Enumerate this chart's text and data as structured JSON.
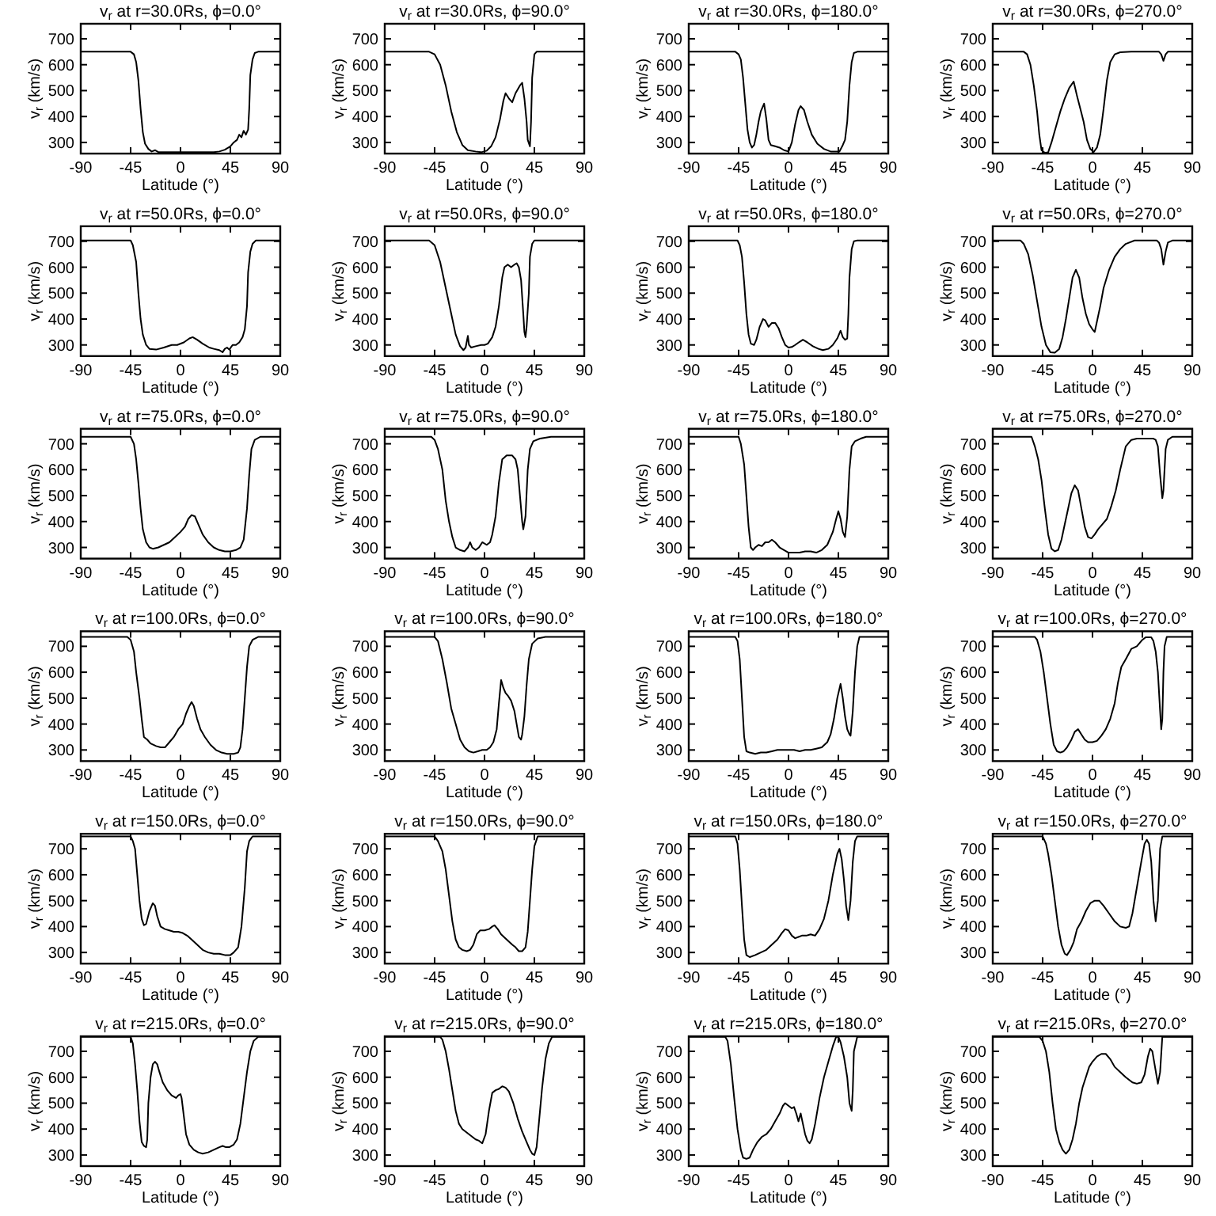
{
  "chart_data": [
    {
      "type": "line",
      "title": "v$_{r}$ at r=30.0Rs, ϕ=0.0°",
      "xlabel": "Latitude (°)",
      "ylabel": "v$_{r}$ (km/s)",
      "color": "#000000",
      "xlim": [
        -90,
        90
      ],
      "ylim": [
        257,
        758
      ],
      "xticks": [
        -90,
        -45,
        0,
        45,
        90
      ],
      "yticks": [
        300,
        400,
        500,
        600,
        700
      ],
      "x": [
        -90,
        -45,
        -42,
        -40,
        -38,
        -36,
        -34,
        -32,
        -29,
        -26,
        -23,
        -20,
        -15,
        0,
        30,
        35,
        40,
        45,
        48,
        51,
        53,
        55,
        57,
        59,
        61,
        62,
        63,
        65,
        67,
        70,
        90
      ],
      "values": [
        650,
        650,
        640,
        610,
        540,
        430,
        340,
        295,
        275,
        265,
        270,
        263,
        262,
        262,
        262,
        265,
        272,
        285,
        300,
        310,
        330,
        320,
        345,
        330,
        350,
        430,
        560,
        620,
        645,
        650,
        650
      ]
    },
    {
      "type": "line",
      "title": "v$_{r}$ at r=30.0Rs, ϕ=90.0°",
      "xlabel": "Latitude (°)",
      "ylabel": "v$_{r}$ (km/s)",
      "color": "#000000",
      "xlim": [
        -90,
        90
      ],
      "ylim": [
        257,
        758
      ],
      "xticks": [
        -90,
        -45,
        0,
        45,
        90
      ],
      "yticks": [
        300,
        400,
        500,
        600,
        700
      ],
      "x": [
        -90,
        -50,
        -45,
        -40,
        -35,
        -30,
        -25,
        -20,
        -15,
        -8,
        -3,
        2,
        6,
        10,
        14,
        17,
        19,
        22,
        25,
        28,
        32,
        34,
        36,
        38,
        39,
        41,
        42,
        43,
        45,
        47,
        90
      ],
      "values": [
        650,
        650,
        640,
        600,
        520,
        420,
        340,
        290,
        270,
        265,
        262,
        268,
        285,
        320,
        390,
        460,
        490,
        470,
        455,
        490,
        520,
        530,
        470,
        380,
        310,
        285,
        380,
        550,
        640,
        650,
        650
      ]
    },
    {
      "type": "line",
      "title": "v$_{r}$ at r=30.0Rs, ϕ=180.0°",
      "xlabel": "Latitude (°)",
      "ylabel": "v$_{r}$ (km/s)",
      "color": "#000000",
      "xlim": [
        -90,
        90
      ],
      "ylim": [
        257,
        758
      ],
      "xticks": [
        -90,
        -45,
        0,
        45,
        90
      ],
      "yticks": [
        300,
        400,
        500,
        600,
        700
      ],
      "x": [
        -90,
        -48,
        -45,
        -43,
        -41,
        -39,
        -37,
        -35,
        -33,
        -31,
        -29,
        -27,
        -25,
        -22,
        -20,
        -18,
        -16,
        -12,
        -8,
        -4,
        0,
        3,
        6,
        9,
        11,
        14,
        17,
        21,
        26,
        32,
        38,
        46,
        49,
        51,
        53,
        55,
        57,
        59,
        62,
        90
      ],
      "values": [
        650,
        650,
        640,
        620,
        550,
        450,
        350,
        300,
        280,
        290,
        330,
        380,
        420,
        450,
        390,
        310,
        290,
        285,
        280,
        270,
        265,
        300,
        370,
        425,
        440,
        425,
        380,
        330,
        295,
        275,
        265,
        265,
        290,
        310,
        380,
        520,
        610,
        645,
        650,
        650
      ]
    },
    {
      "type": "line",
      "title": "v$_{r}$ at r=30.0Rs, ϕ=270.0°",
      "xlabel": "Latitude (°)",
      "ylabel": "v$_{r}$ (km/s)",
      "color": "#000000",
      "xlim": [
        -90,
        90
      ],
      "ylim": [
        257,
        758
      ],
      "xticks": [
        -90,
        -45,
        0,
        45,
        90
      ],
      "yticks": [
        300,
        400,
        500,
        600,
        700
      ],
      "x": [
        -90,
        -62,
        -59,
        -56,
        -53,
        -50,
        -48,
        -46,
        -43,
        -40,
        -37,
        -33,
        -29,
        -25,
        -21,
        -17,
        -14,
        -11,
        -8,
        -5,
        -2,
        1,
        4,
        7,
        10,
        13,
        16,
        20,
        25,
        35,
        60,
        62,
        64,
        66,
        68,
        90
      ],
      "values": [
        650,
        650,
        640,
        600,
        520,
        420,
        330,
        270,
        260,
        262,
        300,
        360,
        420,
        470,
        510,
        535,
        480,
        430,
        380,
        310,
        275,
        263,
        280,
        330,
        430,
        540,
        610,
        640,
        648,
        650,
        650,
        640,
        615,
        640,
        650,
        650
      ]
    },
    {
      "type": "line",
      "title": "v$_{r}$ at r=50.0Rs, ϕ=0.0°",
      "xlabel": "Latitude (°)",
      "ylabel": "v$_{r}$ (km/s)",
      "color": "#000000",
      "xlim": [
        -90,
        90
      ],
      "ylim": [
        257,
        758
      ],
      "xticks": [
        -90,
        -45,
        0,
        45,
        90
      ],
      "yticks": [
        300,
        400,
        500,
        600,
        700
      ],
      "x": [
        -90,
        -45,
        -43,
        -40,
        -38,
        -36,
        -34,
        -31,
        -28,
        -22,
        -15,
        -8,
        -3,
        3,
        8,
        11,
        15,
        20,
        26,
        30,
        35,
        38,
        40,
        42,
        44,
        47,
        50,
        53,
        56,
        58,
        60,
        61,
        63,
        65,
        68,
        90
      ],
      "values": [
        703,
        703,
        685,
        620,
        500,
        400,
        340,
        300,
        285,
        282,
        290,
        300,
        300,
        310,
        325,
        330,
        320,
        305,
        290,
        285,
        280,
        272,
        285,
        290,
        282,
        300,
        300,
        310,
        330,
        360,
        450,
        580,
        660,
        690,
        703,
        703
      ]
    },
    {
      "type": "line",
      "title": "v$_{r}$ at r=50.0Rs, ϕ=90.0°",
      "xlabel": "Latitude (°)",
      "ylabel": "v$_{r}$ (km/s)",
      "color": "#000000",
      "xlim": [
        -90,
        90
      ],
      "ylim": [
        257,
        758
      ],
      "xticks": [
        -90,
        -45,
        0,
        45,
        90
      ],
      "yticks": [
        300,
        400,
        500,
        600,
        700
      ],
      "x": [
        -90,
        -50,
        -45,
        -40,
        -35,
        -30,
        -26,
        -22,
        -19,
        -17,
        -15,
        -14,
        -12,
        -8,
        -3,
        0,
        3,
        7,
        10,
        13,
        16,
        18,
        21,
        24,
        27,
        29,
        31,
        33,
        35,
        36,
        37,
        38,
        40,
        41,
        43,
        45,
        90
      ],
      "values": [
        703,
        703,
        685,
        620,
        520,
        420,
        340,
        295,
        280,
        290,
        335,
        300,
        290,
        295,
        300,
        300,
        305,
        330,
        370,
        450,
        560,
        600,
        610,
        600,
        610,
        615,
        600,
        550,
        420,
        350,
        330,
        370,
        500,
        640,
        690,
        703,
        703
      ]
    },
    {
      "type": "line",
      "title": "v$_{r}$ at r=50.0Rs, ϕ=180.0°",
      "xlabel": "Latitude (°)",
      "ylabel": "v$_{r}$ (km/s)",
      "color": "#000000",
      "xlim": [
        -90,
        90
      ],
      "ylim": [
        257,
        758
      ],
      "xticks": [
        -90,
        -45,
        0,
        45,
        90
      ],
      "yticks": [
        300,
        400,
        500,
        600,
        700
      ],
      "x": [
        -90,
        -46,
        -44,
        -42,
        -40,
        -38,
        -36,
        -34,
        -31,
        -29,
        -26,
        -23,
        -21,
        -18,
        -15,
        -12,
        -9,
        -6,
        -3,
        0,
        3,
        6,
        10,
        13,
        17,
        22,
        27,
        31,
        36,
        40,
        44,
        47,
        49,
        51,
        53,
        54,
        55,
        57,
        59,
        62,
        90
      ],
      "values": [
        703,
        703,
        685,
        640,
        540,
        420,
        340,
        305,
        300,
        320,
        370,
        400,
        395,
        370,
        385,
        385,
        365,
        330,
        300,
        290,
        292,
        300,
        312,
        320,
        310,
        295,
        285,
        280,
        285,
        300,
        325,
        355,
        330,
        320,
        325,
        420,
        560,
        670,
        700,
        703,
        703
      ]
    },
    {
      "type": "line",
      "title": "v$_{r}$ at r=50.0Rs, ϕ=270.0°",
      "xlabel": "Latitude (°)",
      "ylabel": "v$_{r}$ (km/s)",
      "color": "#000000",
      "xlim": [
        -90,
        90
      ],
      "ylim": [
        257,
        758
      ],
      "xticks": [
        -90,
        -45,
        0,
        45,
        90
      ],
      "yticks": [
        300,
        400,
        500,
        600,
        700
      ],
      "x": [
        -90,
        -65,
        -62,
        -58,
        -54,
        -50,
        -46,
        -42,
        -38,
        -34,
        -30,
        -27,
        -24,
        -21,
        -18,
        -15,
        -12,
        -9,
        -6,
        -3,
        0,
        2,
        4,
        7,
        10,
        15,
        20,
        25,
        30,
        38,
        58,
        60,
        62,
        64,
        66,
        68,
        72,
        90
      ],
      "values": [
        703,
        703,
        690,
        650,
        570,
        470,
        370,
        300,
        272,
        270,
        285,
        330,
        400,
        480,
        560,
        590,
        560,
        480,
        420,
        380,
        360,
        350,
        390,
        450,
        520,
        590,
        640,
        670,
        690,
        703,
        703,
        695,
        670,
        610,
        660,
        695,
        703,
        703
      ]
    },
    {
      "type": "line",
      "title": "v$_{r}$ at r=75.0Rs, ϕ=0.0°",
      "xlabel": "Latitude (°)",
      "ylabel": "v$_{r}$ (km/s)",
      "color": "#000000",
      "xlim": [
        -90,
        90
      ],
      "ylim": [
        257,
        758
      ],
      "xticks": [
        -90,
        -45,
        0,
        45,
        90
      ],
      "yticks": [
        300,
        400,
        500,
        600,
        700
      ],
      "x": [
        -90,
        -45,
        -42,
        -40,
        -38,
        -36,
        -34,
        -31,
        -28,
        -25,
        -20,
        -15,
        -10,
        -5,
        0,
        4,
        7,
        10,
        13,
        16,
        20,
        25,
        30,
        35,
        40,
        45,
        50,
        54,
        57,
        60,
        62,
        64,
        67,
        72,
        90
      ],
      "values": [
        727,
        727,
        700,
        640,
        550,
        450,
        370,
        320,
        300,
        295,
        300,
        310,
        320,
        340,
        360,
        380,
        410,
        425,
        420,
        390,
        350,
        320,
        300,
        290,
        285,
        285,
        290,
        300,
        330,
        450,
        580,
        680,
        715,
        727,
        727
      ]
    },
    {
      "type": "line",
      "title": "v$_{r}$ at r=75.0Rs, ϕ=90.0°",
      "xlabel": "Latitude (°)",
      "ylabel": "v$_{r}$ (km/s)",
      "color": "#000000",
      "xlim": [
        -90,
        90
      ],
      "ylim": [
        257,
        758
      ],
      "xticks": [
        -90,
        -45,
        0,
        45,
        90
      ],
      "yticks": [
        300,
        400,
        500,
        600,
        700
      ],
      "x": [
        -90,
        -48,
        -45,
        -42,
        -38,
        -35,
        -32,
        -29,
        -26,
        -22,
        -18,
        -15,
        -13,
        -11,
        -8,
        -5,
        -2,
        2,
        5,
        7,
        10,
        13,
        16,
        20,
        25,
        28,
        30,
        32,
        34,
        35,
        37,
        39,
        41,
        44,
        50,
        60,
        90
      ],
      "values": [
        727,
        727,
        715,
        680,
        600,
        480,
        400,
        340,
        300,
        290,
        285,
        300,
        320,
        300,
        290,
        300,
        320,
        310,
        320,
        350,
        420,
        550,
        640,
        655,
        655,
        640,
        600,
        500,
        400,
        370,
        420,
        600,
        680,
        710,
        720,
        727,
        727
      ]
    },
    {
      "type": "line",
      "title": "v$_{r}$ at r=75.0Rs, ϕ=180.0°",
      "xlabel": "Latitude (°)",
      "ylabel": "v$_{r}$ (km/s)",
      "color": "#000000",
      "xlim": [
        -90,
        90
      ],
      "ylim": [
        257,
        758
      ],
      "xticks": [
        -90,
        -45,
        0,
        45,
        90
      ],
      "yticks": [
        300,
        400,
        500,
        600,
        700
      ],
      "x": [
        -90,
        -45,
        -43,
        -40,
        -38,
        -36,
        -34,
        -32,
        -30,
        -27,
        -24,
        -21,
        -18,
        -15,
        -12,
        -8,
        -4,
        0,
        5,
        10,
        15,
        20,
        25,
        30,
        35,
        40,
        43,
        45,
        47,
        49,
        51,
        53,
        55,
        57,
        60,
        65,
        70,
        90
      ],
      "values": [
        727,
        727,
        700,
        620,
        500,
        380,
        300,
        290,
        300,
        310,
        305,
        320,
        320,
        330,
        320,
        300,
        290,
        280,
        280,
        280,
        285,
        285,
        280,
        290,
        310,
        360,
        410,
        440,
        410,
        360,
        340,
        420,
        600,
        690,
        710,
        720,
        727,
        727
      ]
    },
    {
      "type": "line",
      "title": "v$_{r}$ at r=75.0Rs, ϕ=270.0°",
      "xlabel": "Latitude (°)",
      "ylabel": "v$_{r}$ (km/s)",
      "color": "#000000",
      "xlim": [
        -90,
        90
      ],
      "ylim": [
        257,
        758
      ],
      "xticks": [
        -90,
        -45,
        0,
        45,
        90
      ],
      "yticks": [
        300,
        400,
        500,
        600,
        700
      ],
      "x": [
        -90,
        -55,
        -52,
        -49,
        -46,
        -43,
        -40,
        -37,
        -34,
        -31,
        -28,
        -25,
        -22,
        -19,
        -16,
        -13,
        -10,
        -7,
        -4,
        -1,
        2,
        5,
        9,
        13,
        17,
        21,
        25,
        30,
        35,
        40,
        55,
        57,
        59,
        61,
        63,
        64,
        66,
        68,
        72,
        90
      ],
      "values": [
        727,
        727,
        690,
        640,
        560,
        450,
        350,
        295,
        285,
        290,
        330,
        390,
        450,
        510,
        540,
        520,
        450,
        380,
        340,
        335,
        350,
        370,
        390,
        410,
        460,
        520,
        600,
        690,
        715,
        720,
        720,
        715,
        690,
        580,
        490,
        520,
        680,
        715,
        727,
        727
      ]
    },
    {
      "type": "line",
      "title": "v$_{r}$ at r=100.0Rs, ϕ=0.0°",
      "xlabel": "Latitude (°)",
      "ylabel": "v$_{r}$ (km/s)",
      "color": "#000000",
      "xlim": [
        -90,
        90
      ],
      "ylim": [
        257,
        758
      ],
      "xticks": [
        -90,
        -45,
        0,
        45,
        90
      ],
      "yticks": [
        300,
        400,
        500,
        600,
        700
      ],
      "x": [
        -90,
        -48,
        -45,
        -42,
        -40,
        -37,
        -35,
        -33,
        -30,
        -27,
        -22,
        -18,
        -14,
        -10,
        -6,
        -2,
        2,
        5,
        8,
        10,
        12,
        15,
        18,
        22,
        27,
        32,
        37,
        42,
        48,
        52,
        54,
        56,
        58,
        60,
        62,
        65,
        70,
        90
      ],
      "values": [
        736,
        736,
        725,
        680,
        600,
        500,
        420,
        350,
        340,
        325,
        315,
        310,
        310,
        330,
        350,
        380,
        400,
        440,
        470,
        485,
        470,
        420,
        380,
        350,
        320,
        300,
        290,
        285,
        285,
        290,
        310,
        380,
        500,
        620,
        700,
        725,
        736,
        736
      ]
    },
    {
      "type": "line",
      "title": "v$_{r}$ at r=100.0Rs, ϕ=90.0°",
      "xlabel": "Latitude (°)",
      "ylabel": "v$_{r}$ (km/s)",
      "color": "#000000",
      "xlim": [
        -90,
        90
      ],
      "ylim": [
        257,
        758
      ],
      "xticks": [
        -90,
        -45,
        0,
        45,
        90
      ],
      "yticks": [
        300,
        400,
        500,
        600,
        700
      ],
      "x": [
        -90,
        -45,
        -42,
        -38,
        -34,
        -30,
        -26,
        -22,
        -18,
        -14,
        -10,
        -6,
        -2,
        2,
        5,
        8,
        11,
        13,
        15,
        17,
        19,
        21,
        24,
        27,
        29,
        31,
        33,
        34,
        36,
        38,
        40,
        43,
        48,
        55,
        90
      ],
      "values": [
        736,
        736,
        720,
        650,
        560,
        460,
        400,
        340,
        310,
        295,
        290,
        295,
        300,
        300,
        310,
        330,
        380,
        480,
        570,
        540,
        520,
        510,
        490,
        450,
        400,
        350,
        340,
        360,
        430,
        550,
        650,
        710,
        730,
        736,
        736
      ]
    },
    {
      "type": "line",
      "title": "v$_{r}$ at r=100.0Rs, ϕ=180.0°",
      "xlabel": "Latitude (°)",
      "ylabel": "v$_{r}$ (km/s)",
      "color": "#000000",
      "xlim": [
        -90,
        90
      ],
      "ylim": [
        257,
        758
      ],
      "xticks": [
        -90,
        -45,
        0,
        45,
        90
      ],
      "yticks": [
        300,
        400,
        500,
        600,
        700
      ],
      "x": [
        -90,
        -48,
        -46,
        -44,
        -42,
        -40,
        -38,
        -35,
        -30,
        -25,
        -20,
        -15,
        -10,
        -5,
        0,
        5,
        10,
        15,
        20,
        25,
        30,
        35,
        38,
        41,
        44,
        47,
        49,
        51,
        53,
        55,
        56,
        58,
        60,
        62,
        64,
        90
      ],
      "values": [
        736,
        736,
        720,
        650,
        500,
        350,
        295,
        290,
        285,
        290,
        290,
        295,
        300,
        300,
        300,
        300,
        295,
        300,
        300,
        305,
        310,
        330,
        360,
        420,
        500,
        555,
        500,
        430,
        380,
        360,
        355,
        450,
        600,
        700,
        736,
        736
      ]
    },
    {
      "type": "line",
      "title": "v$_{r}$ at r=100.0Rs, ϕ=270.0°",
      "xlabel": "Latitude (°)",
      "ylabel": "v$_{r}$ (km/s)",
      "color": "#000000",
      "xlim": [
        -90,
        90
      ],
      "ylim": [
        257,
        758
      ],
      "xticks": [
        -90,
        -45,
        0,
        45,
        90
      ],
      "yticks": [
        300,
        400,
        500,
        600,
        700
      ],
      "x": [
        -90,
        -52,
        -50,
        -47,
        -44,
        -41,
        -38,
        -35,
        -32,
        -29,
        -26,
        -23,
        -19,
        -16,
        -13,
        -10,
        -7,
        -4,
        0,
        4,
        8,
        12,
        16,
        20,
        23,
        26,
        30,
        35,
        40,
        45,
        48,
        53,
        55,
        57,
        59,
        61,
        62,
        63,
        64,
        65,
        67,
        90
      ],
      "values": [
        736,
        736,
        725,
        680,
        600,
        500,
        400,
        320,
        295,
        290,
        295,
        310,
        340,
        370,
        380,
        360,
        340,
        330,
        330,
        335,
        355,
        380,
        420,
        480,
        560,
        620,
        650,
        690,
        700,
        725,
        735,
        735,
        720,
        680,
        600,
        450,
        380,
        420,
        600,
        700,
        736,
        736
      ]
    },
    {
      "type": "line",
      "title": "v$_{r}$ at r=150.0Rs, ϕ=0.0°",
      "xlabel": "Latitude (°)",
      "ylabel": "v$_{r}$ (km/s)",
      "color": "#000000",
      "xlim": [
        -90,
        90
      ],
      "ylim": [
        257,
        758
      ],
      "xticks": [
        -90,
        -45,
        0,
        45,
        90
      ],
      "yticks": [
        300,
        400,
        500,
        600,
        700
      ],
      "x": [
        -90,
        -45,
        -43,
        -41,
        -39,
        -37,
        -35,
        -33,
        -31,
        -28,
        -25,
        -23,
        -21,
        -18,
        -14,
        -10,
        -6,
        -2,
        2,
        6,
        10,
        15,
        20,
        25,
        30,
        35,
        40,
        45,
        48,
        52,
        55,
        58,
        60,
        62,
        65,
        90
      ],
      "values": [
        748,
        748,
        730,
        700,
        600,
        500,
        430,
        405,
        410,
        460,
        490,
        480,
        440,
        400,
        390,
        385,
        380,
        380,
        375,
        365,
        350,
        330,
        310,
        300,
        295,
        295,
        290,
        290,
        300,
        320,
        400,
        550,
        690,
        730,
        748,
        748
      ]
    },
    {
      "type": "line",
      "title": "v$_{r}$ at r=150.0Rs, ϕ=90.0°",
      "xlabel": "Latitude (°)",
      "ylabel": "v$_{r}$ (km/s)",
      "color": "#000000",
      "xlim": [
        -90,
        90
      ],
      "ylim": [
        257,
        758
      ],
      "xticks": [
        -90,
        -45,
        0,
        45,
        90
      ],
      "yticks": [
        300,
        400,
        500,
        600,
        700
      ],
      "x": [
        -90,
        -45,
        -42,
        -38,
        -35,
        -32,
        -29,
        -26,
        -23,
        -20,
        -16,
        -13,
        -10,
        -7,
        -4,
        0,
        4,
        7,
        9,
        12,
        15,
        20,
        25,
        28,
        31,
        34,
        37,
        39,
        41,
        43,
        45,
        48,
        90
      ],
      "values": [
        748,
        748,
        730,
        690,
        620,
        520,
        420,
        350,
        320,
        310,
        305,
        310,
        330,
        370,
        385,
        385,
        390,
        400,
        405,
        390,
        370,
        350,
        330,
        320,
        305,
        305,
        320,
        380,
        500,
        620,
        710,
        748,
        748
      ]
    },
    {
      "type": "line",
      "title": "v$_{r}$ at r=150.0Rs, ϕ=180.0°",
      "xlabel": "Latitude (°)",
      "ylabel": "v$_{r}$ (km/s)",
      "color": "#000000",
      "xlim": [
        -90,
        90
      ],
      "ylim": [
        257,
        758
      ],
      "xticks": [
        -90,
        -45,
        0,
        45,
        90
      ],
      "yticks": [
        300,
        400,
        500,
        600,
        700
      ],
      "x": [
        -90,
        -48,
        -46,
        -44,
        -42,
        -40,
        -38,
        -35,
        -30,
        -25,
        -20,
        -15,
        -10,
        -6,
        -3,
        0,
        3,
        6,
        9,
        12,
        16,
        20,
        24,
        28,
        32,
        36,
        40,
        44,
        46,
        48,
        50,
        52,
        54,
        56,
        58,
        60,
        62,
        90
      ],
      "values": [
        748,
        748,
        720,
        620,
        480,
        350,
        290,
        282,
        290,
        300,
        310,
        330,
        350,
        375,
        390,
        385,
        365,
        355,
        360,
        365,
        365,
        370,
        365,
        390,
        430,
        500,
        600,
        680,
        700,
        660,
        580,
        480,
        425,
        500,
        650,
        730,
        748,
        748
      ]
    },
    {
      "type": "line",
      "title": "v$_{r}$ at r=150.0Rs, ϕ=270.0°",
      "xlabel": "Latitude (°)",
      "ylabel": "v$_{r}$ (km/s)",
      "color": "#000000",
      "xlim": [
        -90,
        90
      ],
      "ylim": [
        257,
        758
      ],
      "xticks": [
        -90,
        -45,
        0,
        45,
        90
      ],
      "yticks": [
        300,
        400,
        500,
        600,
        700
      ],
      "x": [
        -90,
        -45,
        -42,
        -40,
        -37,
        -34,
        -31,
        -28,
        -25,
        -23,
        -20,
        -17,
        -14,
        -10,
        -6,
        -2,
        2,
        6,
        10,
        15,
        20,
        25,
        30,
        33,
        36,
        40,
        44,
        47,
        49,
        51,
        53,
        55,
        57,
        59,
        61,
        63,
        90
      ],
      "values": [
        748,
        748,
        720,
        680,
        600,
        500,
        400,
        330,
        295,
        290,
        310,
        340,
        390,
        420,
        460,
        490,
        500,
        500,
        480,
        450,
        420,
        400,
        395,
        400,
        450,
        550,
        650,
        720,
        735,
        720,
        650,
        500,
        420,
        500,
        700,
        748,
        748
      ]
    },
    {
      "type": "line",
      "title": "v$_{r}$ at r=215.0Rs, ϕ=0.0°",
      "xlabel": "Latitude (°)",
      "ylabel": "v$_{r}$ (km/s)",
      "color": "#000000",
      "xlim": [
        -90,
        90
      ],
      "ylim": [
        257,
        758
      ],
      "xticks": [
        -90,
        -45,
        0,
        45,
        90
      ],
      "yticks": [
        300,
        400,
        500,
        600,
        700
      ],
      "x": [
        -90,
        -45,
        -43,
        -41,
        -39,
        -37,
        -35,
        -33,
        -31,
        -30,
        -29,
        -27,
        -25,
        -23,
        -21,
        -19,
        -16,
        -12,
        -8,
        -4,
        -2,
        0,
        1,
        3,
        5,
        8,
        12,
        16,
        20,
        25,
        30,
        35,
        38,
        41,
        44,
        48,
        51,
        54,
        57,
        60,
        63,
        66,
        70,
        90
      ],
      "values": [
        756,
        756,
        730,
        650,
        550,
        430,
        350,
        335,
        330,
        360,
        500,
        600,
        650,
        660,
        650,
        620,
        580,
        550,
        530,
        520,
        530,
        535,
        520,
        450,
        380,
        340,
        320,
        310,
        305,
        310,
        320,
        330,
        335,
        330,
        330,
        340,
        360,
        420,
        520,
        620,
        700,
        740,
        756,
        756
      ]
    },
    {
      "type": "line",
      "title": "v$_{r}$ at r=215.0Rs, ϕ=90.0°",
      "xlabel": "Latitude (°)",
      "ylabel": "v$_{r}$ (km/s)",
      "color": "#000000",
      "xlim": [
        -90,
        90
      ],
      "ylim": [
        257,
        758
      ],
      "xticks": [
        -90,
        -45,
        0,
        45,
        90
      ],
      "yticks": [
        300,
        400,
        500,
        600,
        700
      ],
      "x": [
        -90,
        -40,
        -38,
        -35,
        -32,
        -29,
        -26,
        -23,
        -20,
        -17,
        -14,
        -11,
        -8,
        -5,
        -2,
        1,
        4,
        7,
        10,
        13,
        16,
        19,
        22,
        26,
        30,
        34,
        38,
        41,
        43,
        45,
        47,
        49,
        52,
        55,
        58,
        61,
        90
      ],
      "values": [
        756,
        756,
        745,
        700,
        630,
        550,
        470,
        420,
        400,
        390,
        380,
        370,
        360,
        355,
        345,
        380,
        470,
        540,
        550,
        555,
        565,
        560,
        545,
        500,
        440,
        390,
        350,
        320,
        305,
        300,
        330,
        420,
        560,
        670,
        730,
        756,
        756
      ]
    },
    {
      "type": "line",
      "title": "v$_{r}$ at r=215.0Rs, ϕ=180.0°",
      "xlabel": "Latitude (°)",
      "ylabel": "v$_{r}$ (km/s)",
      "color": "#000000",
      "xlim": [
        -90,
        90
      ],
      "ylim": [
        257,
        758
      ],
      "xticks": [
        -90,
        -45,
        0,
        45,
        90
      ],
      "yticks": [
        300,
        400,
        500,
        600,
        700
      ],
      "x": [
        -90,
        -57,
        -55,
        -52,
        -49,
        -46,
        -43,
        -41,
        -38,
        -35,
        -32,
        -28,
        -24,
        -20,
        -16,
        -12,
        -8,
        -5,
        -3,
        0,
        3,
        5,
        7,
        9,
        11,
        13,
        15,
        17,
        19,
        21,
        24,
        28,
        32,
        36,
        40,
        43,
        45,
        47,
        50,
        53,
        55,
        57,
        58,
        59,
        62,
        90
      ],
      "values": [
        756,
        756,
        740,
        650,
        520,
        400,
        320,
        290,
        285,
        290,
        320,
        350,
        370,
        380,
        400,
        430,
        460,
        490,
        500,
        490,
        480,
        485,
        460,
        430,
        460,
        420,
        380,
        355,
        345,
        360,
        420,
        520,
        600,
        660,
        720,
        756,
        756,
        735,
        680,
        600,
        500,
        470,
        550,
        700,
        756,
        756
      ]
    },
    {
      "type": "line",
      "title": "v$_{r}$ at r=215.0Rs, ϕ=270.0°",
      "xlabel": "Latitude (°)",
      "ylabel": "v$_{r}$ (km/s)",
      "color": "#000000",
      "xlim": [
        -90,
        90
      ],
      "ylim": [
        257,
        758
      ],
      "xticks": [
        -90,
        -45,
        0,
        45,
        90
      ],
      "yticks": [
        300,
        400,
        500,
        600,
        700
      ],
      "x": [
        -90,
        -48,
        -45,
        -42,
        -39,
        -36,
        -33,
        -30,
        -27,
        -24,
        -21,
        -18,
        -15,
        -12,
        -9,
        -6,
        -3,
        0,
        4,
        8,
        12,
        16,
        20,
        25,
        30,
        33,
        36,
        40,
        44,
        47,
        50,
        52,
        54,
        56,
        58,
        59,
        61,
        63,
        90
      ],
      "values": [
        756,
        756,
        740,
        700,
        620,
        500,
        400,
        350,
        320,
        305,
        320,
        360,
        420,
        500,
        560,
        600,
        640,
        660,
        680,
        690,
        690,
        670,
        640,
        620,
        600,
        590,
        580,
        575,
        580,
        610,
        680,
        710,
        700,
        650,
        600,
        575,
        620,
        756,
        756
      ]
    }
  ]
}
